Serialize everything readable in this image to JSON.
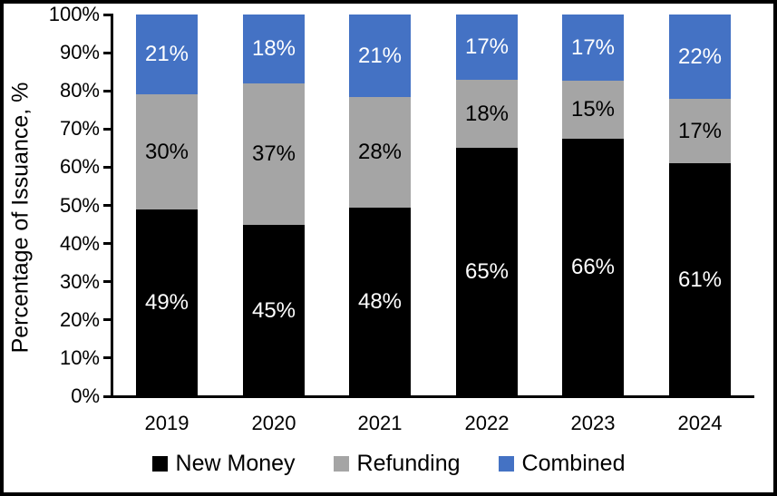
{
  "chart_data": {
    "type": "bar",
    "variant": "stacked-column-100",
    "title": "",
    "xlabel": "",
    "ylabel": "Percentage of Issuance, %",
    "ylim": [
      0,
      100
    ],
    "y_ticks": [
      "0%",
      "10%",
      "20%",
      "30%",
      "40%",
      "50%",
      "60%",
      "70%",
      "80%",
      "90%",
      "100%"
    ],
    "grid": false,
    "legend_position": "bottom",
    "frame_border_color": "#000000",
    "categories": [
      "2019",
      "2020",
      "2021",
      "2022",
      "2023",
      "2024"
    ],
    "series": [
      {
        "name": "New Money",
        "color": "#000000",
        "label_color": "#FFFFFF",
        "values": [
          49,
          45,
          48,
          65,
          66,
          61
        ]
      },
      {
        "name": "Refunding",
        "color": "#A5A5A5",
        "label_color": "#000000",
        "values": [
          30,
          37,
          28,
          18,
          15,
          17
        ]
      },
      {
        "name": "Combined",
        "color": "#4472C4",
        "label_color": "#FFFFFF",
        "values": [
          21,
          18,
          21,
          17,
          17,
          22
        ]
      }
    ],
    "data_labels": [
      [
        "49%",
        "45%",
        "48%",
        "65%",
        "66%",
        "61%"
      ],
      [
        "30%",
        "37%",
        "28%",
        "18%",
        "15%",
        "17%"
      ],
      [
        "21%",
        "18%",
        "21%",
        "17%",
        "17%",
        "22%"
      ]
    ]
  }
}
